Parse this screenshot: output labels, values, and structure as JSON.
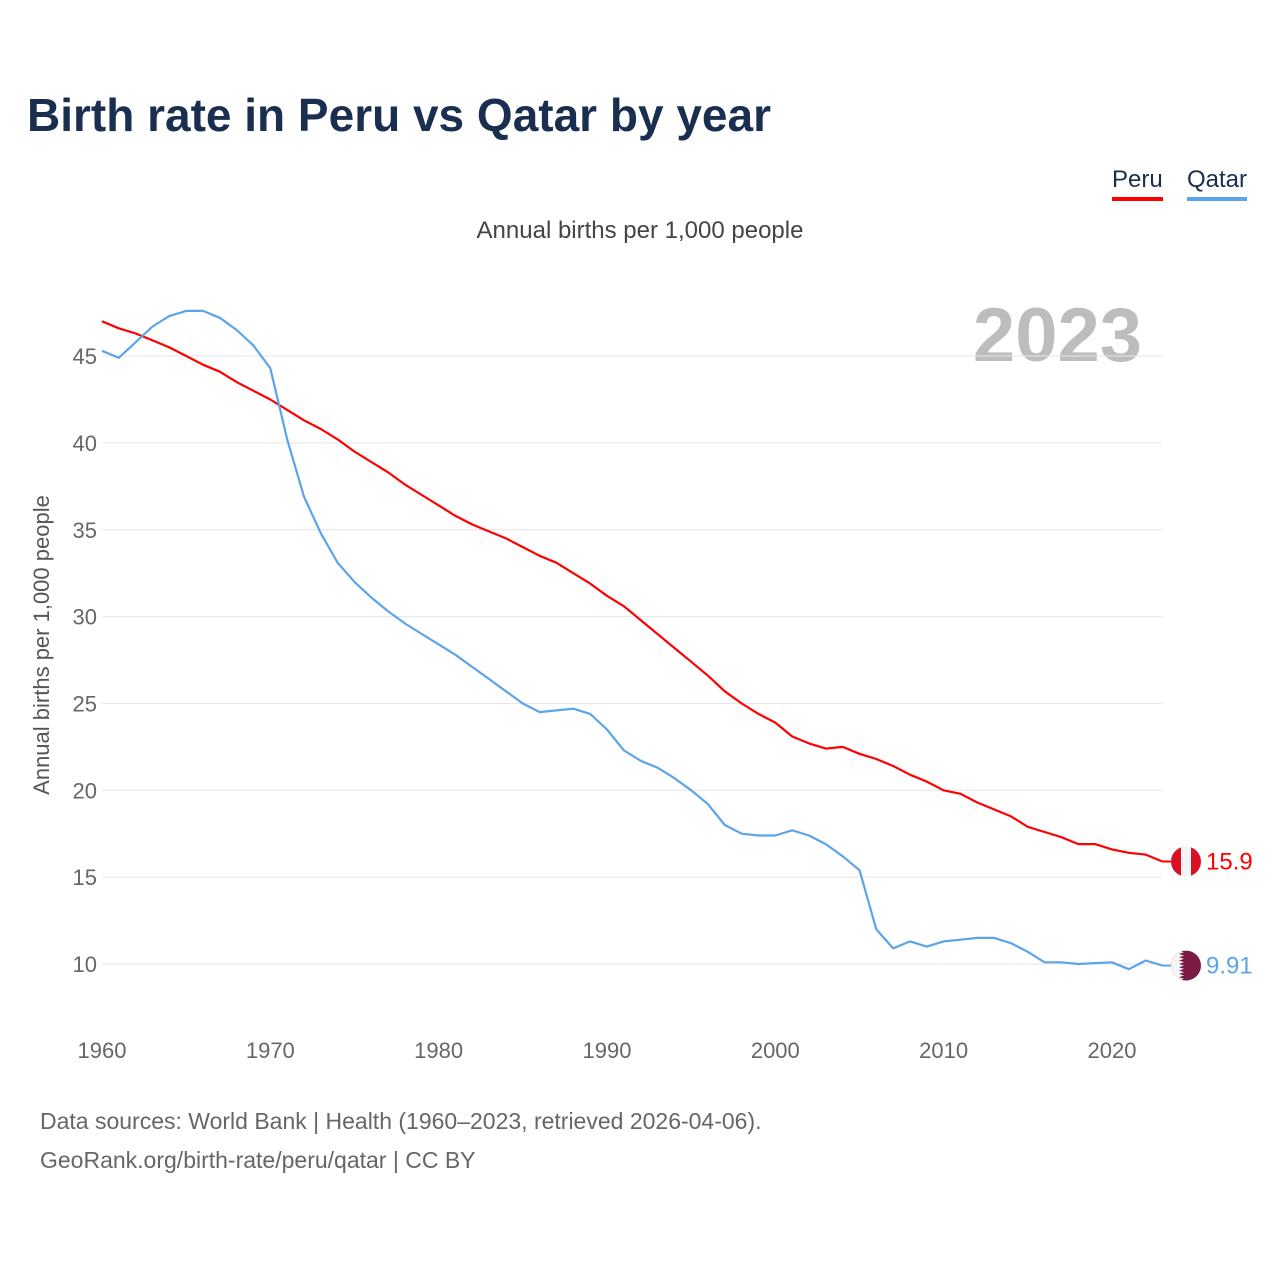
{
  "title": "Birth rate in Peru vs Qatar by year",
  "subtitle": "Annual births per 1,000 people",
  "year_display": "2023",
  "footer": {
    "line1": "Data sources: World Bank | Health (1960–2023, retrieved 2026-04-06).",
    "line2": "GeoRank.org/birth-rate/peru/qatar | CC BY"
  },
  "legend": [
    {
      "label": "Peru",
      "color": "#ff0000"
    },
    {
      "label": "Qatar",
      "color": "#5ba4ea"
    }
  ],
  "chart_data": {
    "type": "line",
    "title": "Birth rate in Peru vs Qatar by year",
    "xlabel": "",
    "ylabel": "Annual births per 1,000 people",
    "xlim": [
      1960,
      2023
    ],
    "ylim": [
      7,
      48
    ],
    "x_ticks": [
      "1960",
      "1970",
      "1980",
      "1990",
      "2000",
      "2010",
      "2020"
    ],
    "y_ticks": [
      "10",
      "15",
      "20",
      "25",
      "30",
      "35",
      "40",
      "45"
    ],
    "grid": true,
    "legend_position": "top-right",
    "x_start": 1960,
    "series": [
      {
        "name": "Peru",
        "color": "#ff0000",
        "end_label": "15.9",
        "flag": "peru-flag-icon",
        "values": [
          47.0,
          46.6,
          46.3,
          45.9,
          45.5,
          45.0,
          44.5,
          44.1,
          43.5,
          43.0,
          42.5,
          41.9,
          41.3,
          40.8,
          40.2,
          39.5,
          38.9,
          38.3,
          37.6,
          37.0,
          36.4,
          35.8,
          35.3,
          34.9,
          34.5,
          34.0,
          33.5,
          33.1,
          32.5,
          31.9,
          31.2,
          30.6,
          29.8,
          29.0,
          28.2,
          27.4,
          26.6,
          25.7,
          25.0,
          24.4,
          23.9,
          23.1,
          22.7,
          22.4,
          22.5,
          22.1,
          21.8,
          21.4,
          20.9,
          20.5,
          20.0,
          19.8,
          19.3,
          18.9,
          18.5,
          17.9,
          17.6,
          17.3,
          16.9,
          16.9,
          16.6,
          16.4,
          16.3,
          15.9
        ]
      },
      {
        "name": "Qatar",
        "color": "#5ba4ea",
        "end_label": "9.91",
        "flag": "qatar-flag-icon",
        "values": [
          45.3,
          44.9,
          45.8,
          46.7,
          47.3,
          47.6,
          47.6,
          47.2,
          46.5,
          45.6,
          44.3,
          40.2,
          36.9,
          34.8,
          33.1,
          32.0,
          31.1,
          30.3,
          29.6,
          29.0,
          28.4,
          27.8,
          27.1,
          26.4,
          25.7,
          25.0,
          24.5,
          24.6,
          24.7,
          24.4,
          23.5,
          22.3,
          21.7,
          21.3,
          20.7,
          20.0,
          19.2,
          18.0,
          17.5,
          17.4,
          17.4,
          17.7,
          17.4,
          16.9,
          16.2,
          15.4,
          12.0,
          10.9,
          11.3,
          11.0,
          11.3,
          11.4,
          11.5,
          11.5,
          11.2,
          10.7,
          10.1,
          10.1,
          10.0,
          10.05,
          10.1,
          9.7,
          10.2,
          9.91
        ]
      }
    ]
  }
}
